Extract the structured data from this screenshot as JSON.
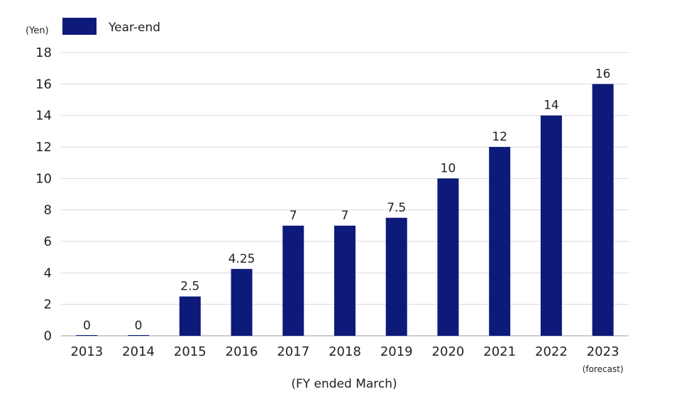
{
  "chart_data": {
    "type": "bar",
    "unit_label": "(Yen)",
    "xlabel": "(FY ended March)",
    "ylabel": "",
    "ylim": [
      0,
      18
    ],
    "yticks": [
      0,
      2,
      4,
      6,
      8,
      10,
      12,
      14,
      16,
      18
    ],
    "grid": true,
    "legend_position": "top-left",
    "bar_color": "#0d1a7a",
    "categories": [
      "2013",
      "2014",
      "2015",
      "2016",
      "2017",
      "2018",
      "2019",
      "2020",
      "2021",
      "2022",
      "2023"
    ],
    "category_notes": [
      "",
      "",
      "",
      "",
      "",
      "",
      "",
      "",
      "",
      "",
      "(forecast)"
    ],
    "series": [
      {
        "name": "Year-end",
        "values": [
          0,
          0,
          2.5,
          4.25,
          7,
          7,
          7.5,
          10,
          12,
          14,
          16
        ],
        "labels": [
          "0",
          "0",
          "2.5",
          "4.25",
          "7",
          "7",
          "7.5",
          "10",
          "12",
          "14",
          "16"
        ]
      }
    ]
  }
}
